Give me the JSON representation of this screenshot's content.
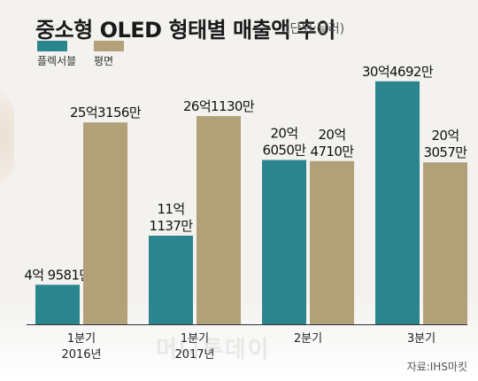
{
  "title": "중소형 OLED 형태별 매출액 추이",
  "unit_note": "(단위:달러)",
  "source": "자료:IHS마킷",
  "watermark": "머니투데이",
  "colors": {
    "flexible": "#2b858f",
    "flat": "#b2a079",
    "axis": "#333333",
    "background": "#f3f2ef"
  },
  "legend": [
    {
      "name": "플렉서블",
      "color": "#2b858f"
    },
    {
      "name": "평면",
      "color": "#b2a079"
    }
  ],
  "chart_data": {
    "type": "bar",
    "categories": [
      [
        "1분기",
        "2016년"
      ],
      [
        "1분기",
        "2017년"
      ],
      [
        "2분기",
        ""
      ],
      [
        "3분기",
        ""
      ]
    ],
    "series": [
      {
        "name": "플렉서블",
        "values": [
          495810000,
          1111370000,
          2060500000,
          3046920000
        ],
        "labels": [
          [
            "4억 9581만"
          ],
          [
            "11억",
            "1137만"
          ],
          [
            "20억",
            "6050만"
          ],
          [
            "30억4692만"
          ]
        ]
      },
      {
        "name": "평면",
        "values": [
          2531560000,
          2611300000,
          2047100000,
          2030570000
        ],
        "labels": [
          [
            "25억3156만"
          ],
          [
            "26억1130만"
          ],
          [
            "20억",
            "4710만"
          ],
          [
            "20억",
            "3057만"
          ]
        ]
      }
    ],
    "ylim": [
      0,
      3600000000
    ],
    "grid": false,
    "legend_position": "top-left"
  }
}
